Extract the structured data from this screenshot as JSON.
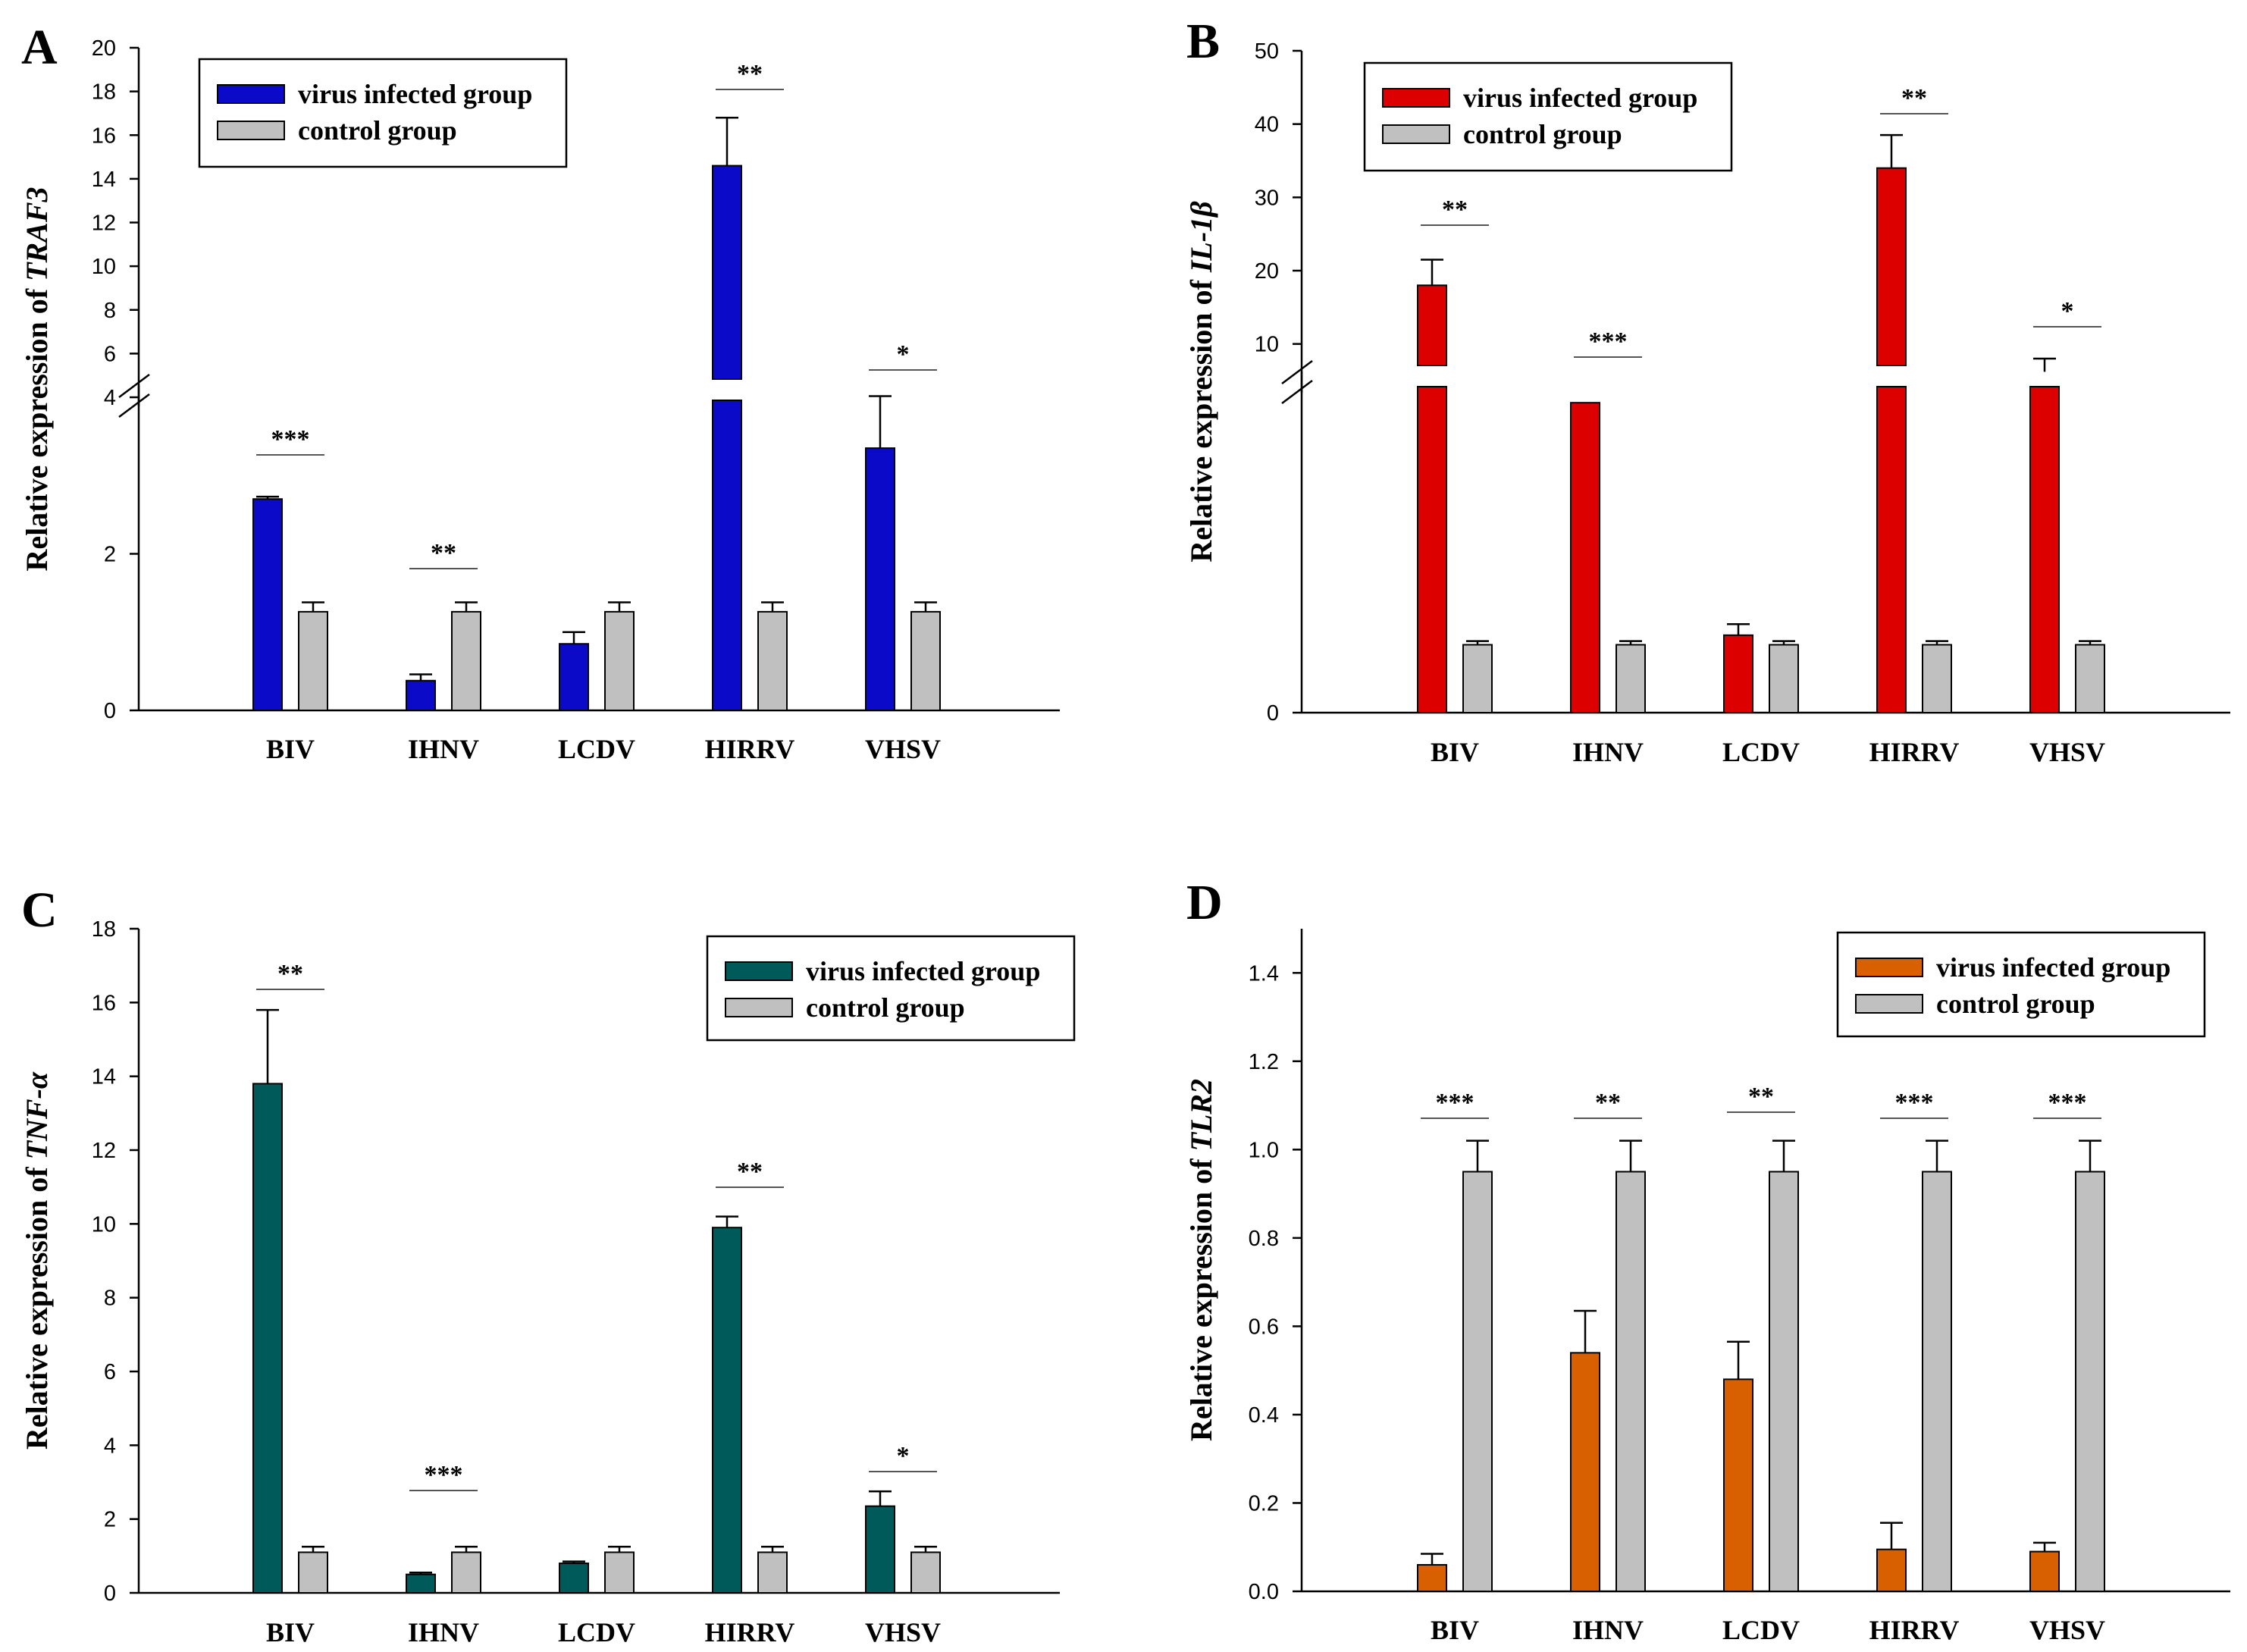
{
  "figure": {
    "legend": {
      "infected_label": "virus infected group",
      "control_label": "control group"
    },
    "control_color": "#c0c0c0"
  },
  "chart_data": [
    {
      "panel": "A",
      "type": "bar",
      "ylabel_prefix": "Relative expression of ",
      "gene": "TRAF3",
      "color": "#0a0ac8",
      "categories": [
        "BIV",
        "IHNV",
        "LCDV",
        "HIRRV",
        "VHSV"
      ],
      "series": [
        {
          "name": "virus infected group",
          "values": [
            2.7,
            0.38,
            0.85,
            14.6,
            3.35
          ],
          "errors": [
            0.03,
            0.08,
            0.15,
            2.2,
            0.7
          ]
        },
        {
          "name": "control group",
          "values": [
            1.26,
            1.26,
            1.26,
            1.26,
            1.26
          ],
          "errors": [
            0.12,
            0.12,
            0.12,
            0.12,
            0.12
          ]
        }
      ],
      "significance": [
        "***",
        "**",
        "",
        "**",
        "*"
      ],
      "axis_break": {
        "lower": [
          0,
          4
        ],
        "upper": [
          4,
          20
        ]
      },
      "yticks_lower": [
        0,
        2,
        4
      ],
      "yticks_upper": [
        6,
        8,
        10,
        12,
        14,
        16,
        18,
        20
      ],
      "legend_position": "top-left"
    },
    {
      "panel": "B",
      "type": "bar",
      "ylabel_prefix": "Relative expression of ",
      "gene": "IL-1β",
      "color": "#dd0000",
      "categories": [
        "BIV",
        "IHNV",
        "LCDV",
        "HIRRV",
        "VHSV"
      ],
      "series": [
        {
          "name": "virus infected group",
          "values": [
            18,
            4.2,
            1.05,
            34,
            6.2
          ],
          "errors": [
            3.5,
            0,
            0.15,
            4.5,
            1.8
          ]
        },
        {
          "name": "control group",
          "values": [
            0.92,
            0.92,
            0.92,
            0.92,
            0.92
          ],
          "errors": [
            0.05,
            0.05,
            0.05,
            0.05,
            0.05
          ]
        }
      ],
      "significance": [
        "**",
        "***",
        "",
        "**",
        "*"
      ],
      "axis_break": {
        "lower": [
          0,
          4.5
        ],
        "upper": [
          5,
          50
        ]
      },
      "yticks_lower": [
        0
      ],
      "yticks_upper": [
        10,
        20,
        30,
        40,
        50
      ],
      "legend_position": "top-left"
    },
    {
      "panel": "C",
      "type": "bar",
      "ylabel_prefix": "Relative expression of ",
      "gene": "TNF-α",
      "color": "#005a5a",
      "categories": [
        "BIV",
        "IHNV",
        "LCDV",
        "HIRRV",
        "VHSV"
      ],
      "series": [
        {
          "name": "virus infected group",
          "values": [
            13.8,
            0.5,
            0.8,
            9.9,
            2.35
          ],
          "errors": [
            2.0,
            0.05,
            0.05,
            0.3,
            0.4
          ]
        },
        {
          "name": "control group",
          "values": [
            1.1,
            1.1,
            1.1,
            1.1,
            1.1
          ],
          "errors": [
            0.15,
            0.15,
            0.15,
            0.15,
            0.15
          ]
        }
      ],
      "significance": [
        "**",
        "***",
        "",
        "**",
        "*"
      ],
      "ylim": [
        0,
        18
      ],
      "yticks": [
        0,
        2,
        4,
        6,
        8,
        10,
        12,
        14,
        16,
        18
      ],
      "legend_position": "top-right"
    },
    {
      "panel": "D",
      "type": "bar",
      "ylabel_prefix": "Relative expression of ",
      "gene": "TLR2",
      "color": "#d96000",
      "categories": [
        "BIV",
        "IHNV",
        "LCDV",
        "HIRRV",
        "VHSV"
      ],
      "series": [
        {
          "name": "virus infected group",
          "values": [
            0.06,
            0.54,
            0.48,
            0.095,
            0.09
          ],
          "errors": [
            0.025,
            0.095,
            0.085,
            0.06,
            0.02
          ]
        },
        {
          "name": "control group",
          "values": [
            0.95,
            0.95,
            0.95,
            0.95,
            0.95
          ],
          "errors": [
            0.07,
            0.07,
            0.07,
            0.07,
            0.07
          ]
        }
      ],
      "significance": [
        "***",
        "**",
        "**",
        "***",
        "***"
      ],
      "ylim": [
        0,
        1.5
      ],
      "yticks": [
        "0.0",
        "0.2",
        "0.4",
        "0.6",
        "0.8",
        "1.0",
        "1.2",
        "1.4"
      ],
      "legend_position": "top-right"
    }
  ]
}
